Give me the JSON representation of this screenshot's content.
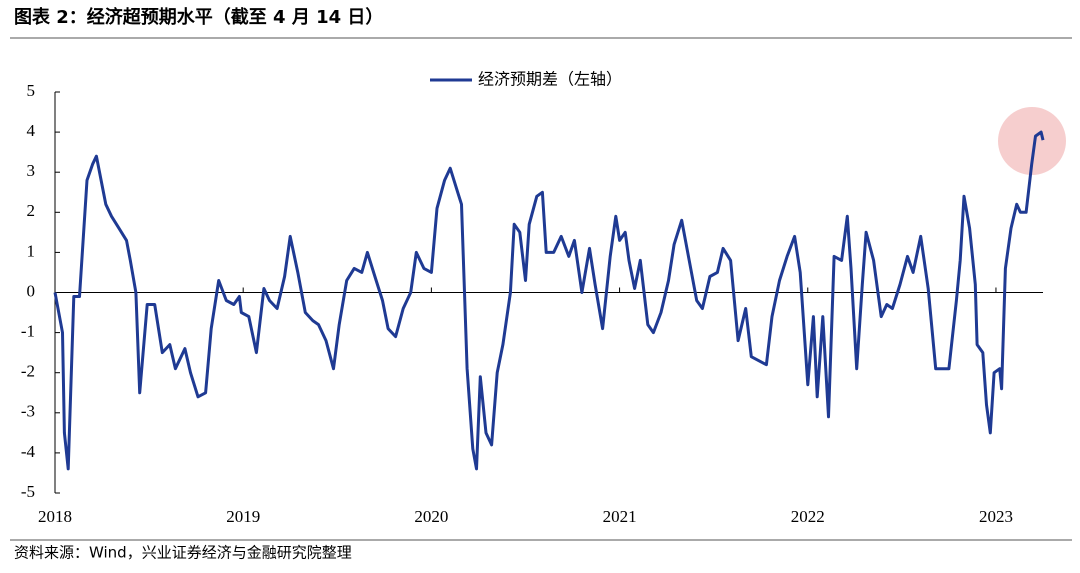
{
  "chart_data": {
    "type": "line",
    "title": "图表 2：经济超预期水平（截至 4 月 14 日）",
    "source": "资料来源：Wind，兴业证券经济与金融研究院整理",
    "xlim": [
      2018,
      2023.25
    ],
    "xticks": [
      2018,
      2019,
      2020,
      2021,
      2022,
      2023
    ],
    "ylim": [
      -5,
      5
    ],
    "yticks": [
      -5,
      -4,
      -3,
      -2,
      -1,
      0,
      1,
      2,
      3,
      4,
      5
    ],
    "legend": "top",
    "x": [
      2018.0,
      2018.04,
      2018.05,
      2018.07,
      2018.1,
      2018.13,
      2018.17,
      2018.2,
      2018.22,
      2018.27,
      2018.3,
      2018.34,
      2018.38,
      2018.4,
      2018.43,
      2018.45,
      2018.49,
      2018.53,
      2018.57,
      2018.61,
      2018.64,
      2018.69,
      2018.72,
      2018.76,
      2018.8,
      2018.83,
      2018.87,
      2018.91,
      2018.95,
      2018.98,
      2018.99,
      2019.03,
      2019.07,
      2019.11,
      2019.14,
      2019.18,
      2019.22,
      2019.25,
      2019.29,
      2019.33,
      2019.37,
      2019.4,
      2019.44,
      2019.48,
      2019.51,
      2019.55,
      2019.59,
      2019.63,
      2019.66,
      2019.7,
      2019.74,
      2019.77,
      2019.81,
      2019.85,
      2019.89,
      2019.92,
      2019.96,
      2020.0,
      2020.03,
      2020.07,
      2020.1,
      2020.14,
      2020.16,
      2020.19,
      2020.22,
      2020.24,
      2020.26,
      2020.29,
      2020.32,
      2020.35,
      2020.38,
      2020.42,
      2020.44,
      2020.47,
      2020.5,
      2020.52,
      2020.56,
      2020.59,
      2020.61,
      2020.65,
      2020.69,
      2020.73,
      2020.76,
      2020.8,
      2020.84,
      2020.87,
      2020.91,
      2020.95,
      2020.98,
      2021.0,
      2021.03,
      2021.05,
      2021.08,
      2021.11,
      2021.15,
      2021.18,
      2021.22,
      2021.26,
      2021.29,
      2021.33,
      2021.37,
      2021.41,
      2021.44,
      2021.48,
      2021.52,
      2021.55,
      2021.59,
      2021.63,
      2021.67,
      2021.7,
      2021.74,
      2021.78,
      2021.81,
      2021.85,
      2021.89,
      2021.93,
      2021.96,
      2022.0,
      2022.03,
      2022.05,
      2022.08,
      2022.11,
      2022.14,
      2022.18,
      2022.21,
      2022.23,
      2022.26,
      2022.29,
      2022.31,
      2022.35,
      2022.39,
      2022.42,
      2022.45,
      2022.49,
      2022.53,
      2022.56,
      2022.6,
      2022.64,
      2022.68,
      2022.71,
      2022.75,
      2022.79,
      2022.81,
      2022.83,
      2022.86,
      2022.89,
      2022.9,
      2022.93,
      2022.95,
      2022.97,
      2022.99,
      2023.02,
      2023.03,
      2023.05,
      2023.08,
      2023.11,
      2023.13,
      2023.16,
      2023.19,
      2023.21,
      2023.24,
      2023.25
    ],
    "series": [
      {
        "name": "经济预期差（左轴）",
        "color": "#1f3a93",
        "values": [
          0,
          -1,
          -3.5,
          -4.4,
          -0.1,
          -0.1,
          2.8,
          3.2,
          3.4,
          2.2,
          1.9,
          1.6,
          1.3,
          0.8,
          0,
          -2.5,
          -0.3,
          -0.3,
          -1.5,
          -1.3,
          -1.9,
          -1.4,
          -2.0,
          -2.6,
          -2.5,
          -0.9,
          0.3,
          -0.2,
          -0.3,
          -0.1,
          -0.5,
          -0.6,
          -1.5,
          0.1,
          -0.2,
          -0.4,
          0.4,
          1.4,
          0.5,
          -0.5,
          -0.7,
          -0.8,
          -1.2,
          -1.9,
          -0.8,
          0.3,
          0.6,
          0.5,
          1.0,
          0.4,
          -0.2,
          -0.9,
          -1.1,
          -0.4,
          0,
          1.0,
          0.6,
          0.5,
          2.1,
          2.8,
          3.1,
          2.5,
          2.2,
          -1.9,
          -3.9,
          -4.4,
          -2.1,
          -3.5,
          -3.8,
          -2.0,
          -1.3,
          0,
          1.7,
          1.5,
          0.3,
          1.7,
          2.4,
          2.5,
          1.0,
          1.0,
          1.4,
          0.9,
          1.3,
          0.0,
          1.1,
          0.2,
          -0.9,
          0.9,
          1.9,
          1.3,
          1.5,
          0.8,
          0.1,
          0.8,
          -0.8,
          -1.0,
          -0.5,
          0.3,
          1.2,
          1.8,
          0.8,
          -0.2,
          -0.4,
          0.4,
          0.5,
          1.1,
          0.8,
          -1.2,
          -0.4,
          -1.6,
          -1.7,
          -1.8,
          -0.6,
          0.3,
          0.9,
          1.4,
          0.5,
          -2.3,
          -0.6,
          -2.6,
          -0.6,
          -3.1,
          0.9,
          0.8,
          1.9,
          0.6,
          -1.9,
          0.2,
          1.5,
          0.8,
          -0.6,
          -0.3,
          -0.4,
          0.2,
          0.9,
          0.5,
          1.4,
          0.1,
          -1.9,
          -1.9,
          -1.9,
          -0.2,
          0.8,
          2.4,
          1.6,
          0.2,
          -1.3,
          -1.5,
          -2.8,
          -3.5,
          -2.0,
          -1.9,
          -2.4,
          0.6,
          1.6,
          2.2,
          2.0,
          2.0,
          3.2,
          3.9,
          4.0,
          3.8
        ]
      }
    ]
  }
}
